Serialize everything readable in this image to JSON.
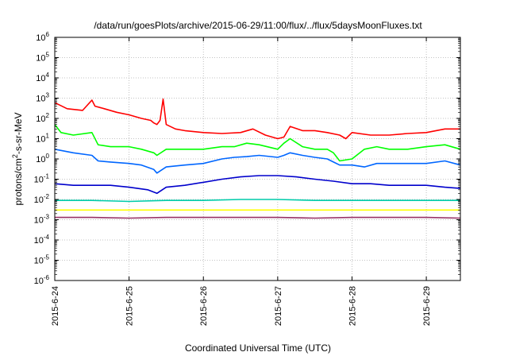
{
  "chart_data": {
    "type": "line",
    "title": "/data/run/goesPlots/archive/2015-06-29/11:00/flux/../flux/5daysMoonFluxes.txt",
    "xlabel": "Coordinated Universal Time (UTC)",
    "ylabel": {
      "base": "protons/cm",
      "sup": "2",
      "rest": "-s-sr-MeV"
    },
    "x_scale": "date",
    "x_range": [
      "2015-06-24T00:00",
      "2015-06-29T11:00"
    ],
    "x_ticks": [
      "2015-6-24",
      "2015-6-25",
      "2015-6-26",
      "2015-6-27",
      "2015-6-28",
      "2015-6-29"
    ],
    "y_scale": "log",
    "y_range": [
      1e-06,
      1000000.0
    ],
    "y_ticks": [
      {
        "base": "10",
        "exp": "-6"
      },
      {
        "base": "10",
        "exp": "-5"
      },
      {
        "base": "10",
        "exp": "-4"
      },
      {
        "base": "10",
        "exp": "-3"
      },
      {
        "base": "10",
        "exp": "-2"
      },
      {
        "base": "10",
        "exp": "-1"
      },
      {
        "base": "10",
        "exp": "0"
      },
      {
        "base": "10",
        "exp": "1"
      },
      {
        "base": "10",
        "exp": "2"
      },
      {
        "base": "10",
        "exp": "3"
      },
      {
        "base": "10",
        "exp": "4"
      },
      {
        "base": "10",
        "exp": "5"
      },
      {
        "base": "10",
        "exp": "6"
      }
    ],
    "grid": true,
    "series": [
      {
        "color": "#ff0000",
        "x": [
          "2015-06-24T00:00",
          "2015-06-24T04:00",
          "2015-06-24T09:00",
          "2015-06-24T12:00",
          "2015-06-24T13:00",
          "2015-06-24T16:00",
          "2015-06-24T20:00",
          "2015-06-25T00:00",
          "2015-06-25T04:00",
          "2015-06-25T07:00",
          "2015-06-25T08:00",
          "2015-06-25T09:00",
          "2015-06-25T10:00",
          "2015-06-25T11:00",
          "2015-06-25T12:00",
          "2015-06-25T15:00",
          "2015-06-25T18:00",
          "2015-06-26T00:00",
          "2015-06-26T06:00",
          "2015-06-26T12:00",
          "2015-06-26T16:00",
          "2015-06-26T20:00",
          "2015-06-27T00:00",
          "2015-06-27T02:00",
          "2015-06-27T04:00",
          "2015-06-27T08:00",
          "2015-06-27T12:00",
          "2015-06-27T16:00",
          "2015-06-27T20:00",
          "2015-06-27T22:00",
          "2015-06-28T00:00",
          "2015-06-28T06:00",
          "2015-06-28T12:00",
          "2015-06-28T18:00",
          "2015-06-29T00:00",
          "2015-06-29T06:00",
          "2015-06-29T11:00"
        ],
        "y": [
          600,
          300,
          250,
          800,
          400,
          300,
          200,
          150,
          100,
          80,
          60,
          50,
          80,
          900,
          50,
          30,
          25,
          20,
          18,
          20,
          30,
          15,
          10,
          12,
          40,
          25,
          25,
          20,
          15,
          10,
          20,
          15,
          15,
          18,
          20,
          30,
          30
        ]
      },
      {
        "color": "#00ff00",
        "x": [
          "2015-06-24T00:00",
          "2015-06-24T02:00",
          "2015-06-24T06:00",
          "2015-06-24T12:00",
          "2015-06-24T14:00",
          "2015-06-24T18:00",
          "2015-06-25T00:00",
          "2015-06-25T04:00",
          "2015-06-25T08:00",
          "2015-06-25T09:00",
          "2015-06-25T12:00",
          "2015-06-25T18:00",
          "2015-06-26T00:00",
          "2015-06-26T06:00",
          "2015-06-26T10:00",
          "2015-06-26T14:00",
          "2015-06-26T18:00",
          "2015-06-27T00:00",
          "2015-06-27T02:00",
          "2015-06-27T04:00",
          "2015-06-27T08:00",
          "2015-06-27T12:00",
          "2015-06-27T16:00",
          "2015-06-27T18:00",
          "2015-06-27T20:00",
          "2015-06-28T00:00",
          "2015-06-28T04:00",
          "2015-06-28T08:00",
          "2015-06-28T12:00",
          "2015-06-28T18:00",
          "2015-06-29T00:00",
          "2015-06-29T06:00",
          "2015-06-29T11:00"
        ],
        "y": [
          50,
          20,
          15,
          20,
          5,
          4,
          4,
          3,
          2,
          1.5,
          3,
          3,
          3,
          4,
          4,
          6,
          5,
          3,
          6,
          10,
          4,
          3,
          3,
          2,
          0.8,
          1,
          3,
          4,
          3,
          3,
          4,
          5,
          3
        ]
      },
      {
        "color": "#0066ff",
        "x": [
          "2015-06-24T00:00",
          "2015-06-24T06:00",
          "2015-06-24T12:00",
          "2015-06-24T14:00",
          "2015-06-24T18:00",
          "2015-06-25T00:00",
          "2015-06-25T04:00",
          "2015-06-25T08:00",
          "2015-06-25T09:00",
          "2015-06-25T12:00",
          "2015-06-25T18:00",
          "2015-06-26T00:00",
          "2015-06-26T06:00",
          "2015-06-26T10:00",
          "2015-06-26T14:00",
          "2015-06-26T18:00",
          "2015-06-27T00:00",
          "2015-06-27T02:00",
          "2015-06-27T04:00",
          "2015-06-27T08:00",
          "2015-06-27T12:00",
          "2015-06-27T16:00",
          "2015-06-27T18:00",
          "2015-06-27T20:00",
          "2015-06-28T00:00",
          "2015-06-28T04:00",
          "2015-06-28T08:00",
          "2015-06-28T12:00",
          "2015-06-28T18:00",
          "2015-06-29T00:00",
          "2015-06-29T06:00",
          "2015-06-29T11:00"
        ],
        "y": [
          3,
          2,
          1.5,
          0.8,
          0.7,
          0.6,
          0.5,
          0.3,
          0.2,
          0.4,
          0.5,
          0.6,
          1,
          1.2,
          1.3,
          1.5,
          1.2,
          1.5,
          2,
          1.5,
          1.2,
          1,
          0.7,
          0.5,
          0.5,
          0.4,
          0.6,
          0.6,
          0.6,
          0.6,
          0.8,
          0.5
        ]
      },
      {
        "color": "#0000cc",
        "x": [
          "2015-06-24T00:00",
          "2015-06-24T06:00",
          "2015-06-24T12:00",
          "2015-06-24T18:00",
          "2015-06-25T00:00",
          "2015-06-25T06:00",
          "2015-06-25T09:00",
          "2015-06-25T12:00",
          "2015-06-25T18:00",
          "2015-06-26T00:00",
          "2015-06-26T06:00",
          "2015-06-26T12:00",
          "2015-06-26T18:00",
          "2015-06-27T00:00",
          "2015-06-27T06:00",
          "2015-06-27T12:00",
          "2015-06-27T18:00",
          "2015-06-28T00:00",
          "2015-06-28T06:00",
          "2015-06-28T12:00",
          "2015-06-28T18:00",
          "2015-06-29T00:00",
          "2015-06-29T06:00",
          "2015-06-29T11:00"
        ],
        "y": [
          0.06,
          0.05,
          0.05,
          0.05,
          0.04,
          0.03,
          0.02,
          0.04,
          0.05,
          0.07,
          0.1,
          0.13,
          0.15,
          0.15,
          0.13,
          0.1,
          0.08,
          0.06,
          0.06,
          0.05,
          0.05,
          0.05,
          0.04,
          0.035
        ]
      },
      {
        "color": "#00ccaa",
        "x": [
          "2015-06-24T00:00",
          "2015-06-24T12:00",
          "2015-06-25T00:00",
          "2015-06-25T12:00",
          "2015-06-26T00:00",
          "2015-06-26T12:00",
          "2015-06-27T00:00",
          "2015-06-27T12:00",
          "2015-06-28T00:00",
          "2015-06-28T12:00",
          "2015-06-29T00:00",
          "2015-06-29T11:00"
        ],
        "y": [
          0.009,
          0.009,
          0.008,
          0.009,
          0.009,
          0.01,
          0.01,
          0.009,
          0.009,
          0.009,
          0.009,
          0.009
        ]
      },
      {
        "color": "#ffff00",
        "x": [
          "2015-06-24T00:00",
          "2015-06-24T12:00",
          "2015-06-25T00:00",
          "2015-06-25T12:00",
          "2015-06-26T00:00",
          "2015-06-26T12:00",
          "2015-06-27T00:00",
          "2015-06-27T12:00",
          "2015-06-28T00:00",
          "2015-06-28T12:00",
          "2015-06-29T00:00",
          "2015-06-29T11:00"
        ],
        "y": [
          0.003,
          0.003,
          0.003,
          0.003,
          0.003,
          0.003,
          0.003,
          0.003,
          0.003,
          0.003,
          0.003,
          0.003
        ]
      },
      {
        "color": "#993366",
        "x": [
          "2015-06-24T00:00",
          "2015-06-24T12:00",
          "2015-06-25T00:00",
          "2015-06-25T12:00",
          "2015-06-26T00:00",
          "2015-06-26T12:00",
          "2015-06-27T00:00",
          "2015-06-27T12:00",
          "2015-06-28T00:00",
          "2015-06-28T12:00",
          "2015-06-29T00:00",
          "2015-06-29T11:00"
        ],
        "y": [
          0.0013,
          0.0013,
          0.0012,
          0.0013,
          0.0013,
          0.0013,
          0.0013,
          0.0012,
          0.0013,
          0.0013,
          0.0013,
          0.0012
        ]
      }
    ]
  }
}
